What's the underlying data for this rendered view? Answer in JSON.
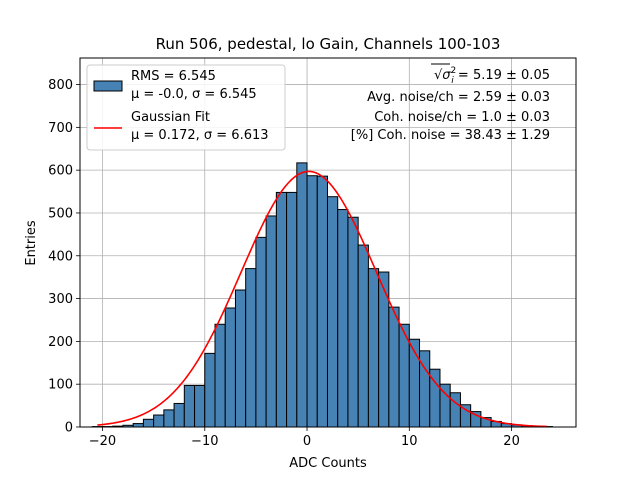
{
  "chart_data": {
    "type": "bar",
    "title": "Run 506, pedestal, lo Gain, Channels 100-103",
    "xlabel": "ADC Counts",
    "ylabel": "Entries",
    "xlim": [
      -22.2,
      26.3
    ],
    "ylim": [
      0,
      862
    ],
    "grid": true,
    "x_ticks": [
      -20,
      -10,
      0,
      10,
      20
    ],
    "x_tick_labels": [
      "−20",
      "−10",
      "0",
      "10",
      "20"
    ],
    "y_ticks": [
      0,
      100,
      200,
      300,
      400,
      500,
      600,
      700,
      800
    ],
    "y_tick_labels": [
      "0",
      "100",
      "200",
      "300",
      "400",
      "500",
      "600",
      "700",
      "800"
    ],
    "histogram": {
      "name_lines": [
        "RMS = 6.545",
        "μ = -0.0, σ = 6.545"
      ],
      "color": "#4682b4",
      "edge_color": "#000000",
      "bin_edges": [
        -21,
        -20,
        -19,
        -18,
        -17,
        -16,
        -15,
        -14,
        -13,
        -12,
        -11,
        -10,
        -9,
        -8,
        -7,
        -6,
        -5,
        -4,
        -3,
        -2,
        -1,
        0,
        1,
        2,
        3,
        4,
        5,
        6,
        7,
        8,
        9,
        10,
        11,
        12,
        13,
        14,
        15,
        16,
        17,
        18,
        19,
        20,
        21,
        22,
        23,
        24
      ],
      "counts": [
        1,
        1,
        2,
        4,
        8,
        18,
        28,
        40,
        55,
        97,
        97,
        172,
        240,
        278,
        320,
        370,
        443,
        493,
        548,
        548,
        617,
        587,
        586,
        538,
        508,
        490,
        425,
        370,
        362,
        280,
        240,
        205,
        178,
        135,
        100,
        80,
        52,
        36,
        22,
        13,
        8,
        5,
        3,
        2,
        1
      ]
    },
    "fit": {
      "name_lines": [
        "Gaussian Fit",
        "μ = 0.172, σ = 6.613"
      ],
      "color": "#ff0000",
      "mu": 0.172,
      "sigma": 6.613,
      "amplitude": 597,
      "x_range": [
        -20.5,
        23.5
      ]
    },
    "legend_position": "upper left",
    "annotations": [
      {
        "prefix": "√",
        "symbol": "σ",
        "sup": "2",
        "sub": "i",
        "text": " = 5.19 ± 0.05"
      },
      {
        "text": "Avg. noise/ch = 2.59 ± 0.03"
      },
      {
        "text": "Coh. noise/ch = 1.0 ± 0.03"
      },
      {
        "text": "[%] Coh. noise = 38.43 ± 1.29"
      }
    ]
  }
}
